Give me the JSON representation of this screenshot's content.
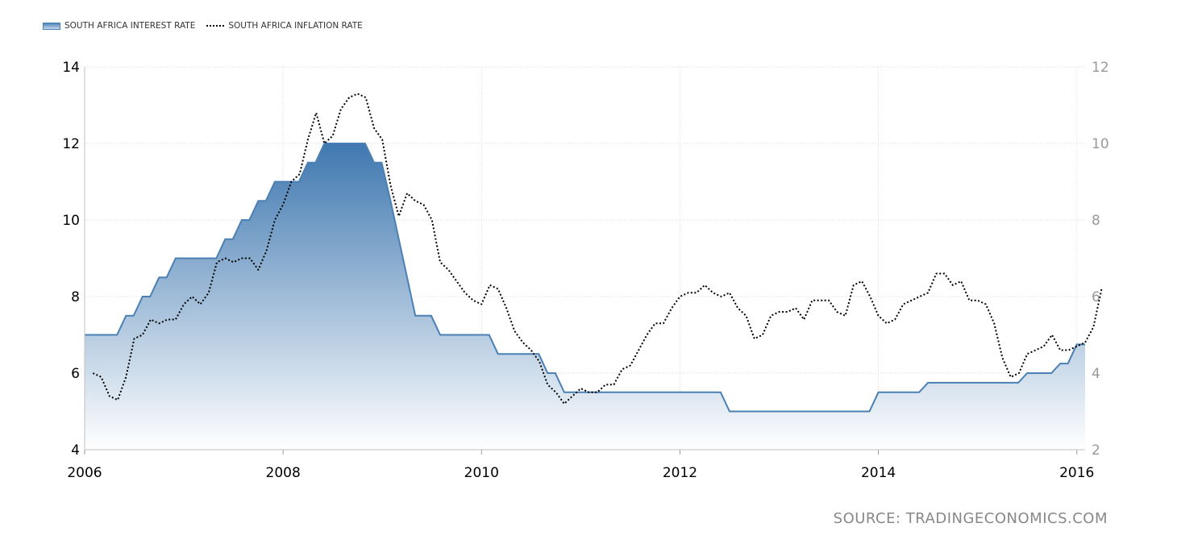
{
  "legend": {
    "series1_label": "SOUTH AFRICA INTEREST RATE",
    "series2_label": "SOUTH AFRICA INFLATION RATE"
  },
  "source_text": "SOURCE: TRADINGECONOMICS.COM",
  "colors": {
    "interest_line": "#4a80b4",
    "interest_fill_top": "#3f78b0",
    "interest_fill_bottom": "#ffffff",
    "inflation_line": "#000000",
    "grid": "#d8d8d8"
  },
  "chart_data": {
    "type": "area",
    "x_ticks": [
      "2006",
      "2008",
      "2010",
      "2012",
      "2014",
      "2016"
    ],
    "xlim": [
      "2006-01",
      "2016-02"
    ],
    "y_left": {
      "ylim": [
        4,
        14
      ],
      "ticks": [
        4,
        6,
        8,
        10,
        12,
        14
      ]
    },
    "y_right": {
      "ylim": [
        2,
        12
      ],
      "ticks": [
        2,
        4,
        6,
        8,
        10,
        12
      ]
    },
    "grid": true,
    "legend_position": "top-left",
    "series": [
      {
        "name": "SOUTH AFRICA INTEREST RATE",
        "kind": "area-step",
        "axis": "left",
        "points": [
          [
            "2006-01",
            7.0
          ],
          [
            "2006-06",
            7.5
          ],
          [
            "2006-08",
            8.0
          ],
          [
            "2006-10",
            8.5
          ],
          [
            "2006-12",
            9.0
          ],
          [
            "2007-06",
            9.5
          ],
          [
            "2007-08",
            10.0
          ],
          [
            "2007-10",
            10.5
          ],
          [
            "2007-12",
            11.0
          ],
          [
            "2008-04",
            11.5
          ],
          [
            "2008-06",
            12.0
          ],
          [
            "2008-12",
            11.5
          ],
          [
            "2009-02",
            10.5
          ],
          [
            "2009-03",
            9.5
          ],
          [
            "2009-04",
            8.5
          ],
          [
            "2009-05",
            7.5
          ],
          [
            "2009-08",
            7.0
          ],
          [
            "2010-03",
            6.5
          ],
          [
            "2010-09",
            6.0
          ],
          [
            "2010-11",
            5.5
          ],
          [
            "2012-07",
            5.0
          ],
          [
            "2014-01",
            5.5
          ],
          [
            "2014-07",
            5.75
          ],
          [
            "2015-07",
            6.0
          ],
          [
            "2015-11",
            6.25
          ],
          [
            "2016-01",
            6.75
          ]
        ]
      },
      {
        "name": "SOUTH AFRICA INFLATION RATE",
        "kind": "line-dotted",
        "axis": "right",
        "points": [
          [
            "2006-02",
            4.0
          ],
          [
            "2006-03",
            3.9
          ],
          [
            "2006-04",
            3.4
          ],
          [
            "2006-05",
            3.3
          ],
          [
            "2006-06",
            3.9
          ],
          [
            "2006-07",
            4.9
          ],
          [
            "2006-08",
            5.0
          ],
          [
            "2006-09",
            5.4
          ],
          [
            "2006-10",
            5.3
          ],
          [
            "2006-11",
            5.4
          ],
          [
            "2006-12",
            5.4
          ],
          [
            "2007-01",
            5.8
          ],
          [
            "2007-02",
            6.0
          ],
          [
            "2007-03",
            5.8
          ],
          [
            "2007-04",
            6.1
          ],
          [
            "2007-05",
            6.9
          ],
          [
            "2007-06",
            7.0
          ],
          [
            "2007-07",
            6.9
          ],
          [
            "2007-08",
            7.0
          ],
          [
            "2007-09",
            7.0
          ],
          [
            "2007-10",
            6.7
          ],
          [
            "2007-11",
            7.2
          ],
          [
            "2007-12",
            8.0
          ],
          [
            "2008-01",
            8.4
          ],
          [
            "2008-02",
            9.0
          ],
          [
            "2008-03",
            9.2
          ],
          [
            "2008-04",
            10.1
          ],
          [
            "2008-05",
            10.8
          ],
          [
            "2008-06",
            10.0
          ],
          [
            "2008-07",
            10.2
          ],
          [
            "2008-08",
            10.9
          ],
          [
            "2008-09",
            11.2
          ],
          [
            "2008-10",
            11.3
          ],
          [
            "2008-11",
            11.2
          ],
          [
            "2008-12",
            10.4
          ],
          [
            "2009-01",
            10.1
          ],
          [
            "2009-02",
            8.9
          ],
          [
            "2009-03",
            8.1
          ],
          [
            "2009-04",
            8.7
          ],
          [
            "2009-05",
            8.5
          ],
          [
            "2009-06",
            8.4
          ],
          [
            "2009-07",
            8.0
          ],
          [
            "2009-08",
            6.9
          ],
          [
            "2009-09",
            6.7
          ],
          [
            "2009-10",
            6.4
          ],
          [
            "2009-11",
            6.1
          ],
          [
            "2009-12",
            5.9
          ],
          [
            "2010-01",
            5.8
          ],
          [
            "2010-02",
            6.3
          ],
          [
            "2010-03",
            6.2
          ],
          [
            "2010-04",
            5.7
          ],
          [
            "2010-05",
            5.1
          ],
          [
            "2010-06",
            4.8
          ],
          [
            "2010-07",
            4.6
          ],
          [
            "2010-08",
            4.3
          ],
          [
            "2010-09",
            3.7
          ],
          [
            "2010-10",
            3.5
          ],
          [
            "2010-11",
            3.2
          ],
          [
            "2010-12",
            3.4
          ],
          [
            "2011-01",
            3.6
          ],
          [
            "2011-02",
            3.5
          ],
          [
            "2011-03",
            3.5
          ],
          [
            "2011-04",
            3.7
          ],
          [
            "2011-05",
            3.7
          ],
          [
            "2011-06",
            4.1
          ],
          [
            "2011-07",
            4.2
          ],
          [
            "2011-08",
            4.6
          ],
          [
            "2011-09",
            5.0
          ],
          [
            "2011-10",
            5.3
          ],
          [
            "2011-11",
            5.3
          ],
          [
            "2011-12",
            5.7
          ],
          [
            "2012-01",
            6.0
          ],
          [
            "2012-02",
            6.1
          ],
          [
            "2012-03",
            6.1
          ],
          [
            "2012-04",
            6.3
          ],
          [
            "2012-05",
            6.1
          ],
          [
            "2012-06",
            6.0
          ],
          [
            "2012-07",
            6.1
          ],
          [
            "2012-08",
            5.7
          ],
          [
            "2012-09",
            5.5
          ],
          [
            "2012-10",
            4.9
          ],
          [
            "2012-11",
            5.0
          ],
          [
            "2012-12",
            5.5
          ],
          [
            "2013-01",
            5.6
          ],
          [
            "2013-02",
            5.6
          ],
          [
            "2013-03",
            5.7
          ],
          [
            "2013-04",
            5.4
          ],
          [
            "2013-05",
            5.9
          ],
          [
            "2013-06",
            5.9
          ],
          [
            "2013-07",
            5.9
          ],
          [
            "2013-08",
            5.6
          ],
          [
            "2013-09",
            5.5
          ],
          [
            "2013-10",
            6.3
          ],
          [
            "2013-11",
            6.4
          ],
          [
            "2013-12",
            6.0
          ],
          [
            "2014-01",
            5.5
          ],
          [
            "2014-02",
            5.3
          ],
          [
            "2014-03",
            5.4
          ],
          [
            "2014-04",
            5.8
          ],
          [
            "2014-05",
            5.9
          ],
          [
            "2014-06",
            6.0
          ],
          [
            "2014-07",
            6.1
          ],
          [
            "2014-08",
            6.6
          ],
          [
            "2014-09",
            6.6
          ],
          [
            "2014-10",
            6.3
          ],
          [
            "2014-11",
            6.4
          ],
          [
            "2014-12",
            5.9
          ],
          [
            "2015-01",
            5.9
          ],
          [
            "2015-02",
            5.8
          ],
          [
            "2015-03",
            5.3
          ],
          [
            "2015-04",
            4.4
          ],
          [
            "2015-05",
            3.9
          ],
          [
            "2015-06",
            4.0
          ],
          [
            "2015-07",
            4.5
          ],
          [
            "2015-08",
            4.6
          ],
          [
            "2015-09",
            4.7
          ],
          [
            "2015-10",
            5.0
          ],
          [
            "2015-11",
            4.6
          ],
          [
            "2015-12",
            4.6
          ],
          [
            "2016-01",
            4.7
          ],
          [
            "2016-02",
            4.8
          ],
          [
            "2016-03",
            5.2
          ],
          [
            "2016-04",
            6.2
          ]
        ]
      }
    ]
  }
}
